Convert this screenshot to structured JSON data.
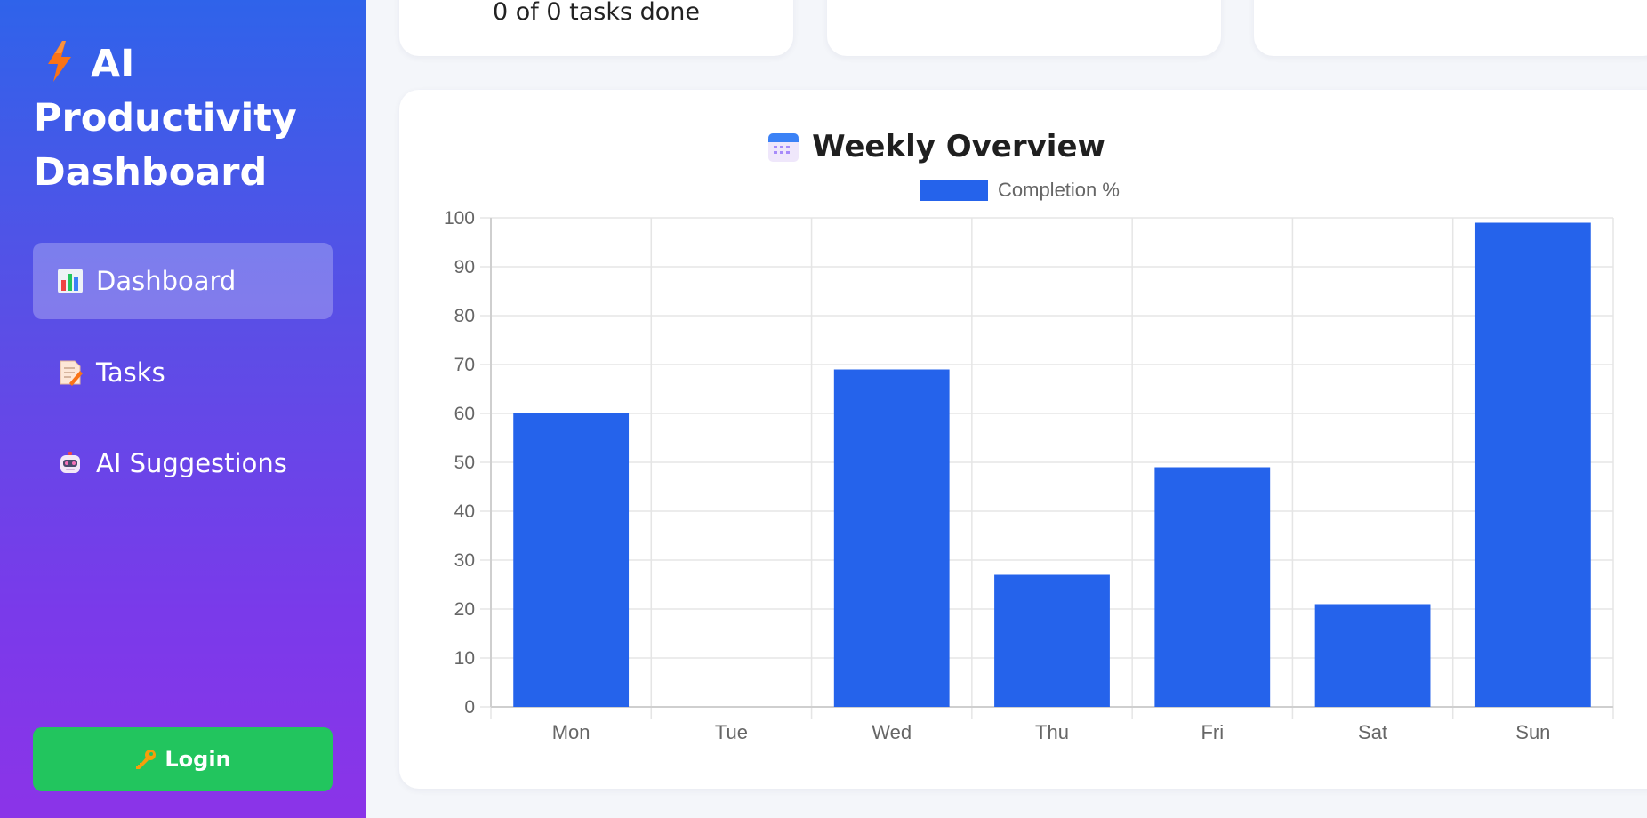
{
  "sidebar": {
    "brand": "AI Productivity Dashboard",
    "nav": [
      {
        "label": "Dashboard",
        "icon": "bar-chart-icon",
        "active": true
      },
      {
        "label": "Tasks",
        "icon": "memo-icon",
        "active": false
      },
      {
        "label": "AI Suggestions",
        "icon": "robot-icon",
        "active": false
      }
    ],
    "login_label": "Login"
  },
  "stats": {
    "tasks_done": "0 of 0 tasks done"
  },
  "chart_card": {
    "title": "Weekly Overview",
    "icon": "calendar-icon"
  },
  "colors": {
    "bar": "#2563eb",
    "login": "#22c55e",
    "grid": "#e5e5e5",
    "axis_text": "#666666"
  },
  "chart_data": {
    "type": "bar",
    "title": "Weekly Overview",
    "categories": [
      "Mon",
      "Tue",
      "Wed",
      "Thu",
      "Fri",
      "Sat",
      "Sun"
    ],
    "series": [
      {
        "name": "Completion %",
        "values": [
          60,
          0,
          69,
          27,
          49,
          21,
          99
        ]
      }
    ],
    "ylim": [
      0,
      100
    ],
    "yticks": [
      0,
      10,
      20,
      30,
      40,
      50,
      60,
      70,
      80,
      90,
      100
    ],
    "grid": true,
    "legend": "top"
  }
}
